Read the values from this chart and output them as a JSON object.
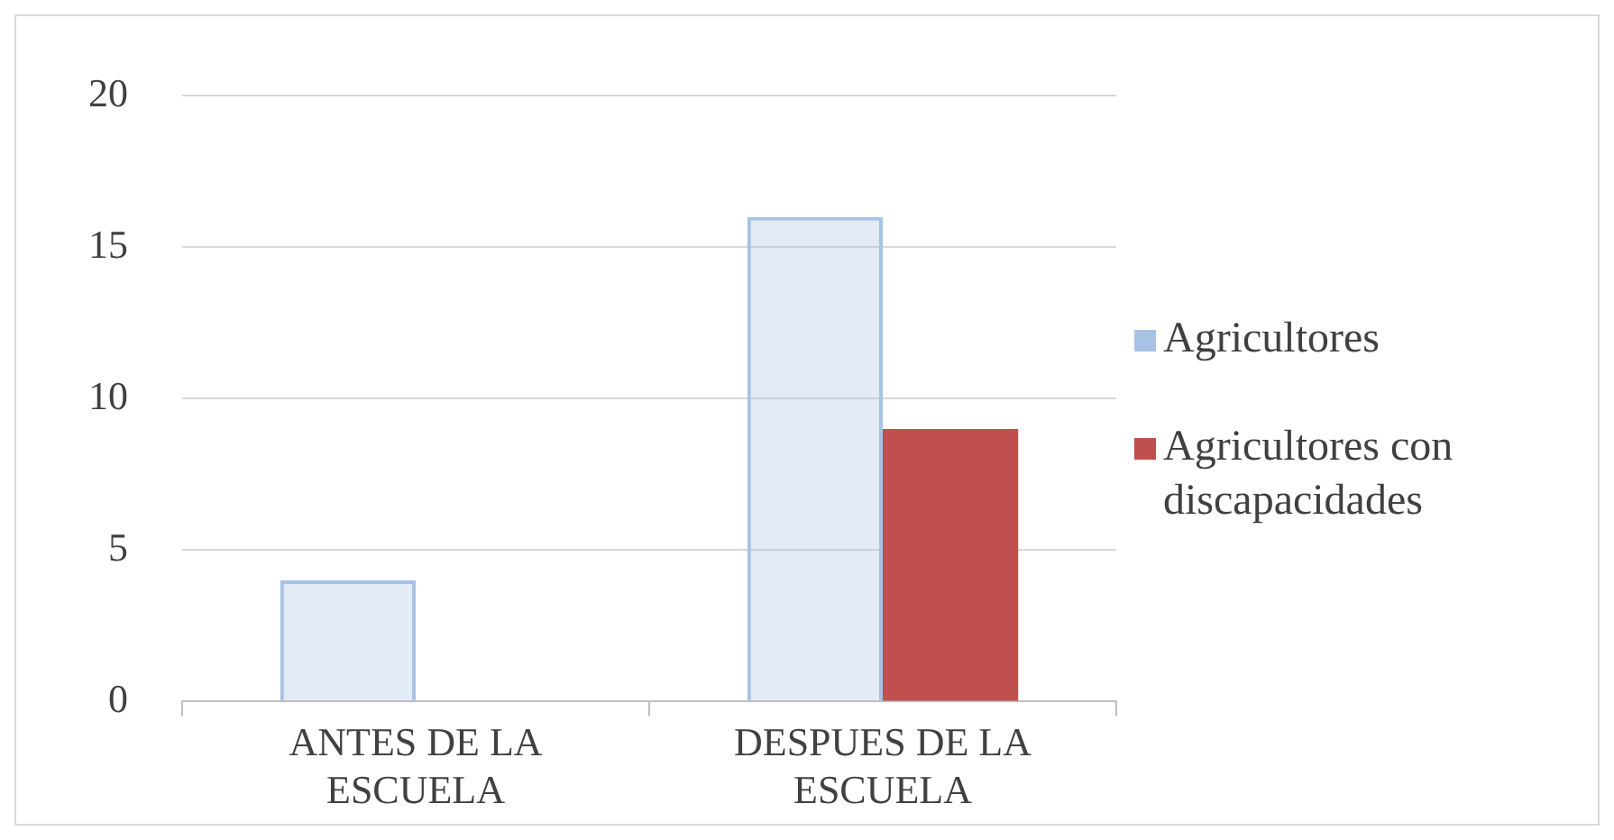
{
  "chart_data": {
    "type": "bar",
    "categories": [
      "ANTES DE LA ESCUELA",
      "DESPUES DE LA ESCUELA"
    ],
    "series": [
      {
        "name": "Agricultores",
        "color": "#a7c2e5",
        "values": [
          4,
          16
        ]
      },
      {
        "name": "Agricultores con discapacidades",
        "color": "#c0504d",
        "values": [
          0,
          9
        ]
      }
    ],
    "ylim": [
      0,
      20
    ],
    "yticks": [
      0,
      5,
      10,
      15,
      20
    ],
    "grid": "y",
    "legend": "right"
  }
}
